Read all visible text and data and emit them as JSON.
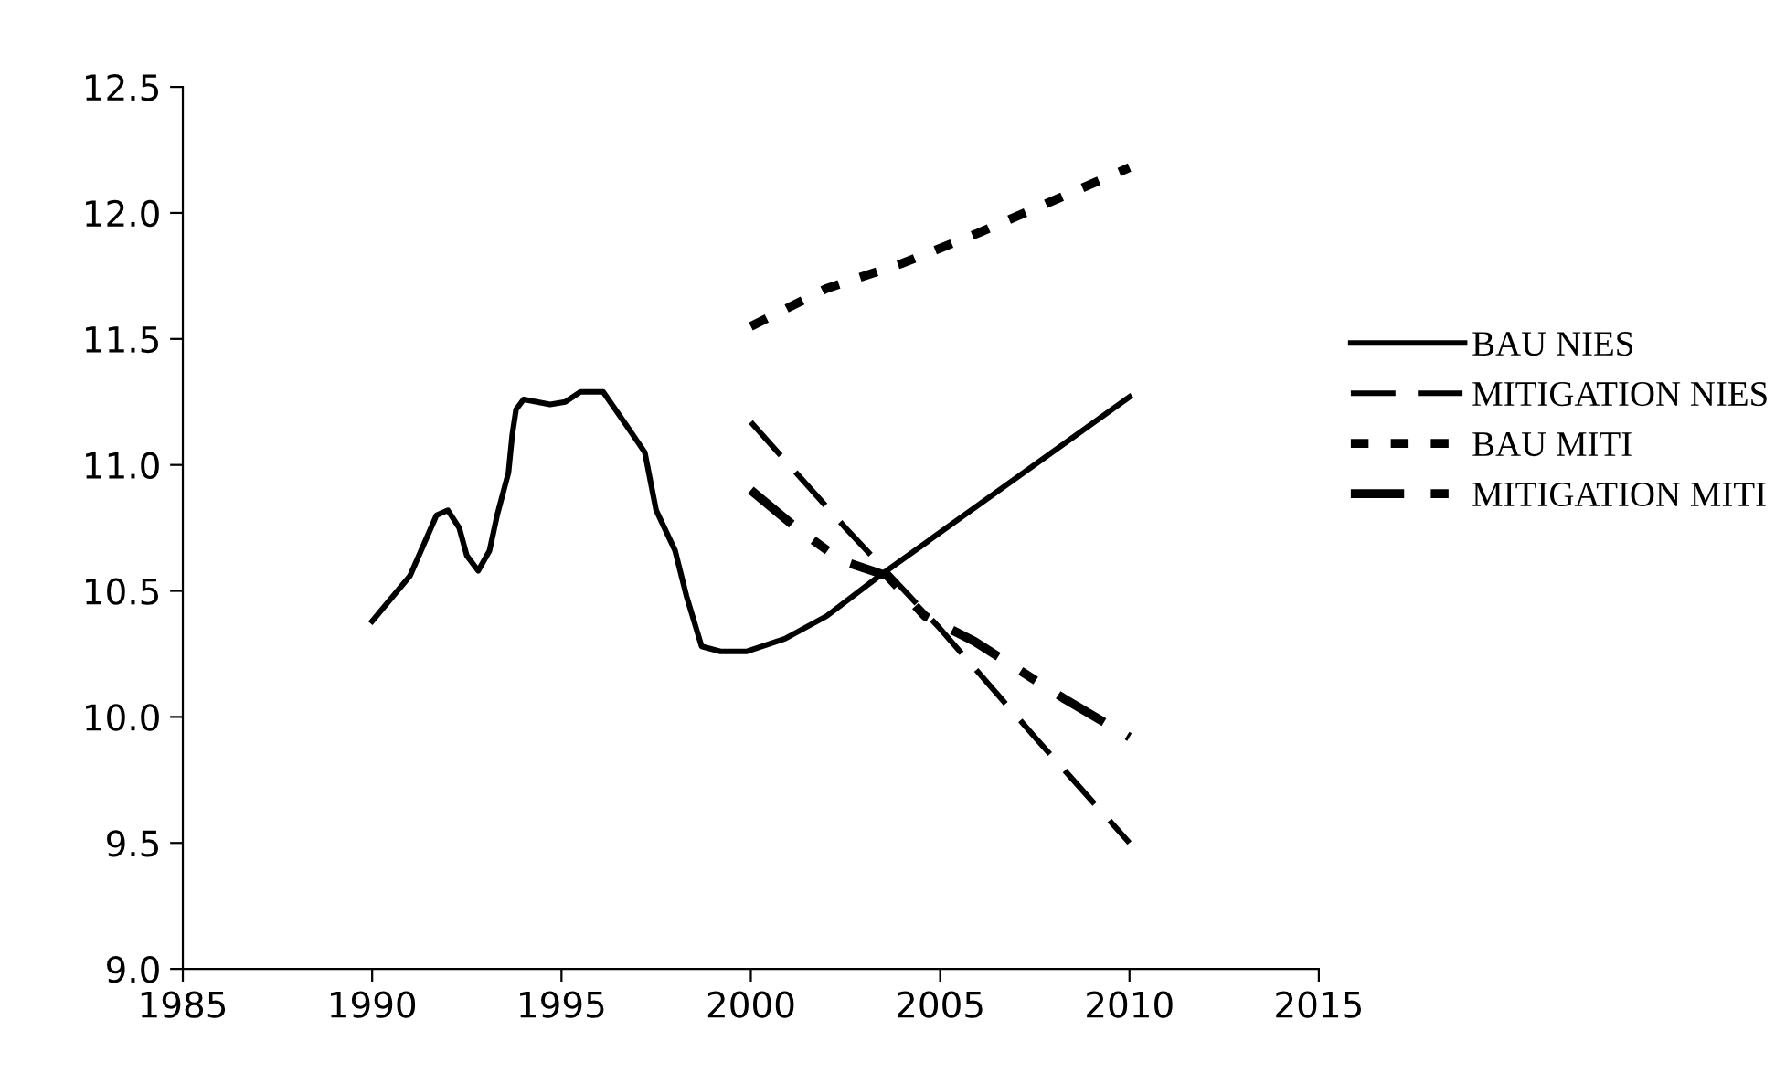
{
  "chart_data": {
    "type": "line",
    "xlim": [
      1985,
      2015
    ],
    "xticks": [
      1985,
      1990,
      1995,
      2000,
      2005,
      2010,
      2015
    ],
    "ylim": [
      9.0,
      12.5
    ],
    "yticks": [
      {
        "value": 9.0,
        "label": "9.0"
      },
      {
        "value": 9.5,
        "label": "9.5"
      },
      {
        "value": 10.0,
        "label": "10.0"
      },
      {
        "value": 10.5,
        "label": "10.5"
      },
      {
        "value": 11.0,
        "label": "11.0"
      },
      {
        "value": 11.5,
        "label": "11.5"
      },
      {
        "value": 12.0,
        "label": "12.0"
      },
      {
        "value": 12.5,
        "label": "12.5"
      }
    ],
    "grid": false,
    "legend": "right",
    "marker": "none",
    "series": [
      {
        "name": "BAU NIES",
        "color": "#000000",
        "line_style": "solid",
        "x": [
          1990,
          1991.0,
          1991.7,
          1992.0,
          1992.3,
          1992.5,
          1992.8,
          1993.1,
          1993.3,
          1993.6,
          1993.7,
          1993.8,
          1994.0,
          1994.7,
          1995.1,
          1995.5,
          1996.1,
          1996.7,
          1997.2,
          1997.5,
          1998.0,
          1998.3,
          1998.7,
          1999.2,
          1999.9,
          2000.9,
          2002.0,
          2003.4,
          2010
        ],
        "values": [
          10.38,
          10.56,
          10.8,
          10.82,
          10.75,
          10.64,
          10.58,
          10.66,
          10.8,
          10.97,
          11.12,
          11.22,
          11.26,
          11.24,
          11.25,
          11.29,
          11.29,
          11.16,
          11.05,
          10.82,
          10.66,
          10.48,
          10.28,
          10.26,
          10.26,
          10.31,
          10.4,
          10.56,
          11.27
        ]
      },
      {
        "name": "MITIGATION NIES",
        "color": "#000000",
        "line_style": "dashed",
        "x": [
          2000,
          2002.5,
          2005,
          2007.5,
          2010
        ],
        "values": [
          11.17,
          10.75,
          10.35,
          9.92,
          9.5
        ]
      },
      {
        "name": "BAU MITI",
        "color": "#000000",
        "line_style": "dotted",
        "x": [
          2000,
          2002,
          2004,
          2006,
          2008,
          2010
        ],
        "values": [
          11.55,
          11.7,
          11.8,
          11.92,
          12.05,
          12.18
        ]
      },
      {
        "name": "MITIGATION MITI",
        "color": "#000000",
        "line_style": "dashdot",
        "x": [
          2000,
          2001.2,
          2002.4,
          2003.6,
          2004.6,
          2005.9,
          2008.3,
          2010
        ],
        "values": [
          10.9,
          10.75,
          10.62,
          10.56,
          10.4,
          10.3,
          10.07,
          9.92
        ]
      }
    ]
  }
}
